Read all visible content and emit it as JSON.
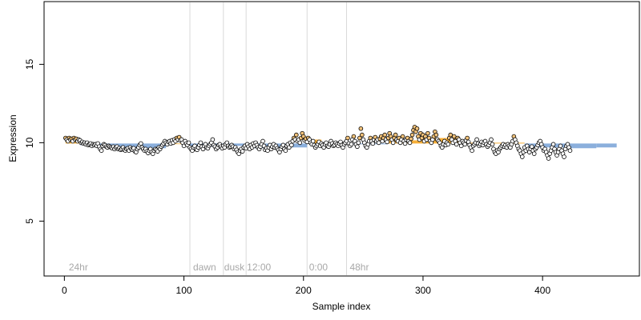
{
  "chart_data": {
    "type": "scatter",
    "xlabel": "Sample index",
    "ylabel": "Expression",
    "xlim": [
      -17,
      481
    ],
    "ylim": [
      1.5,
      19
    ],
    "x_ticks": [
      0,
      100,
      200,
      300,
      400
    ],
    "y_ticks": [
      5,
      10,
      15
    ],
    "x_tick_labels": [
      "0",
      "100",
      "200",
      "300",
      "400"
    ],
    "y_tick_labels": [
      "5",
      "10",
      "15"
    ],
    "grid": false,
    "legend": "none",
    "colors": {
      "point_fill": "#ffffff",
      "point_outline": "#000000",
      "point_fill_high": "#f2c27a",
      "bar_above": "#f5a623",
      "bar_below": "#7ea6d8",
      "vline": "#d9d9d9",
      "annotation_text": "#a8a8a8",
      "axis": "#000000"
    },
    "baseline": 9.95,
    "vlines": [
      105,
      133,
      152,
      203,
      236
    ],
    "annotations": [
      {
        "x": 3,
        "text": "24hr"
      },
      {
        "x": 107,
        "text": "dawn"
      },
      {
        "x": 133,
        "text": "dusk"
      },
      {
        "x": 152,
        "text": "12:00"
      },
      {
        "x": 204,
        "text": "0:00"
      },
      {
        "x": 238,
        "text": "48hr"
      }
    ],
    "segment_means": [
      {
        "x0": 1,
        "x1": 13,
        "value": 10.15
      },
      {
        "x0": 13,
        "x1": 45,
        "value": 9.85
      },
      {
        "x0": 45,
        "x1": 85,
        "value": 9.65
      },
      {
        "x0": 85,
        "x1": 105,
        "value": 9.95
      },
      {
        "x0": 105,
        "x1": 133,
        "value": 9.75
      },
      {
        "x0": 133,
        "x1": 152,
        "value": 9.8
      },
      {
        "x0": 152,
        "x1": 180,
        "value": 9.65
      },
      {
        "x0": 180,
        "x1": 203,
        "value": 9.7
      },
      {
        "x0": 203,
        "x1": 215,
        "value": 10.2
      },
      {
        "x0": 215,
        "x1": 236,
        "value": 9.85
      },
      {
        "x0": 236,
        "x1": 270,
        "value": 9.9
      },
      {
        "x0": 270,
        "x1": 300,
        "value": 10.15
      },
      {
        "x0": 300,
        "x1": 330,
        "value": 10.3
      },
      {
        "x0": 330,
        "x1": 385,
        "value": 10.0
      },
      {
        "x0": 385,
        "x1": 420,
        "value": 9.7
      },
      {
        "x0": 420,
        "x1": 445,
        "value": 9.65
      },
      {
        "x0": 445,
        "x1": 462,
        "value": 9.7
      }
    ],
    "points_y": [
      10.3,
      10.2,
      10.1,
      10.3,
      10.2,
      10.25,
      10.1,
      10.3,
      10.2,
      10.25,
      10.1,
      10.2,
      10.15,
      10.0,
      10.05,
      9.95,
      10.0,
      9.9,
      10.0,
      9.85,
      9.9,
      9.95,
      9.8,
      9.9,
      9.85,
      9.9,
      9.8,
      9.95,
      9.75,
      9.6,
      9.5,
      9.8,
      9.9,
      9.85,
      9.75,
      9.7,
      9.8,
      9.75,
      9.7,
      9.65,
      9.75,
      9.6,
      9.7,
      9.75,
      9.6,
      9.65,
      9.55,
      9.6,
      9.7,
      9.55,
      9.5,
      9.6,
      9.65,
      9.5,
      9.7,
      9.6,
      9.55,
      9.65,
      9.45,
      9.4,
      9.6,
      9.7,
      9.85,
      9.95,
      9.7,
      9.6,
      9.5,
      9.6,
      9.45,
      9.35,
      9.5,
      9.6,
      9.4,
      9.3,
      9.5,
      9.6,
      9.55,
      9.45,
      9.7,
      9.6,
      9.75,
      9.85,
      9.95,
      10.1,
      10.0,
      9.9,
      10.05,
      10.1,
      9.95,
      10.15,
      10.0,
      10.2,
      10.1,
      10.3,
      10.2,
      10.35,
      10.15,
      10.2,
      10.0,
      9.8,
      10.1,
      9.95,
      9.85,
      10.0,
      9.7,
      9.6,
      9.5,
      9.7,
      9.8,
      9.6,
      9.55,
      9.7,
      9.85,
      10.0,
      9.75,
      9.6,
      9.8,
      9.9,
      9.7,
      9.65,
      9.8,
      9.9,
      10.0,
      10.2,
      9.85,
      9.75,
      9.6,
      9.7,
      9.85,
      9.9,
      9.75,
      9.65,
      9.8,
      9.7,
      9.9,
      10.0,
      9.8,
      9.7,
      9.75,
      9.85,
      9.75,
      9.6,
      9.7,
      9.55,
      9.4,
      9.3,
      9.5,
      9.6,
      9.45,
      9.7,
      9.8,
      9.65,
      9.9,
      9.75,
      9.6,
      9.85,
      9.7,
      9.95,
      9.8,
      10.0,
      9.85,
      9.7,
      9.6,
      9.75,
      9.9,
      10.1,
      9.8,
      9.55,
      9.65,
      9.5,
      9.7,
      9.85,
      9.6,
      9.75,
      9.9,
      9.7,
      9.8,
      9.65,
      9.55,
      9.4,
      9.6,
      9.75,
      9.85,
      9.6,
      9.5,
      9.8,
      9.9,
      9.7,
      10.0,
      9.85,
      10.1,
      10.3,
      10.2,
      10.5,
      10.1,
      10.2,
      10.0,
      10.3,
      10.6,
      10.4,
      10.15,
      10.25,
      10.05,
      10.3,
      10.2,
      10.0,
      9.9,
      10.1,
      9.85,
      9.7,
      9.8,
      9.9,
      10.05,
      9.8,
      9.95,
      9.85,
      9.7,
      9.9,
      10.0,
      9.8,
      9.75,
      9.9,
      10.1,
      9.95,
      9.8,
      9.85,
      10.0,
      9.9,
      9.8,
      9.95,
      10.05,
      9.85,
      9.7,
      9.9,
      10.0,
      10.1,
      10.3,
      9.95,
      9.8,
      9.9,
      10.2,
      10.4,
      10.1,
      9.9,
      9.75,
      10.0,
      10.3,
      10.9,
      10.5,
      10.2,
      10.0,
      9.8,
      9.7,
      9.9,
      10.1,
      10.3,
      10.1,
      9.95,
      10.2,
      10.35,
      10.1,
      10.2,
      10.0,
      10.25,
      10.4,
      10.1,
      10.3,
      10.5,
      10.2,
      10.05,
      10.3,
      10.6,
      10.4,
      10.2,
      10.0,
      10.3,
      10.5,
      10.2,
      10.1,
      10.3,
      10.0,
      10.2,
      10.4,
      10.1,
      9.95,
      10.2,
      10.3,
      10.1,
      10.0,
      10.25,
      10.5,
      10.8,
      11.0,
      10.7,
      10.9,
      10.4,
      10.2,
      10.6,
      10.3,
      10.5,
      10.1,
      10.4,
      10.2,
      10.6,
      10.3,
      10.1,
      10.0,
      10.2,
      10.4,
      10.7,
      10.5,
      10.2,
      10.1,
      10.0,
      9.8,
      9.7,
      9.9,
      10.1,
      9.85,
      10.0,
      9.9,
      10.3,
      10.5,
      10.2,
      10.0,
      10.4,
      10.1,
      9.9,
      10.3,
      10.2,
      10.0,
      9.8,
      10.1,
      10.0,
      9.9,
      10.15,
      10.3,
      10.05,
      9.85,
      9.7,
      9.5,
      9.8,
      9.9,
      10.0,
      10.2,
      9.95,
      9.8,
      9.9,
      10.05,
      9.85,
      10.0,
      10.1,
      9.9,
      9.75,
      9.85,
      10.0,
      10.2,
      9.9,
      9.6,
      9.4,
      9.3,
      9.5,
      9.4,
      9.6,
      9.7,
      9.8,
      9.9,
      9.75,
      9.85,
      9.7,
      9.9,
      9.8,
      9.7,
      9.9,
      10.1,
      10.4,
      10.2,
      10.0,
      9.8,
      9.6,
      9.5,
      9.3,
      9.1,
      9.4,
      9.7,
      9.5,
      9.8,
      9.6,
      9.4,
      9.6,
      9.75,
      9.5,
      9.3,
      9.6,
      9.7,
      9.85,
      10.0,
      10.1,
      9.9,
      9.7,
      9.5,
      9.6,
      9.4,
      9.2,
      9.0,
      9.3,
      9.5,
      9.7,
      9.9,
      9.6,
      9.4,
      9.2,
      9.4,
      9.6,
      9.8,
      9.5,
      9.3,
      9.1,
      9.6,
      9.8,
      9.9,
      9.7,
      9.5
    ]
  }
}
